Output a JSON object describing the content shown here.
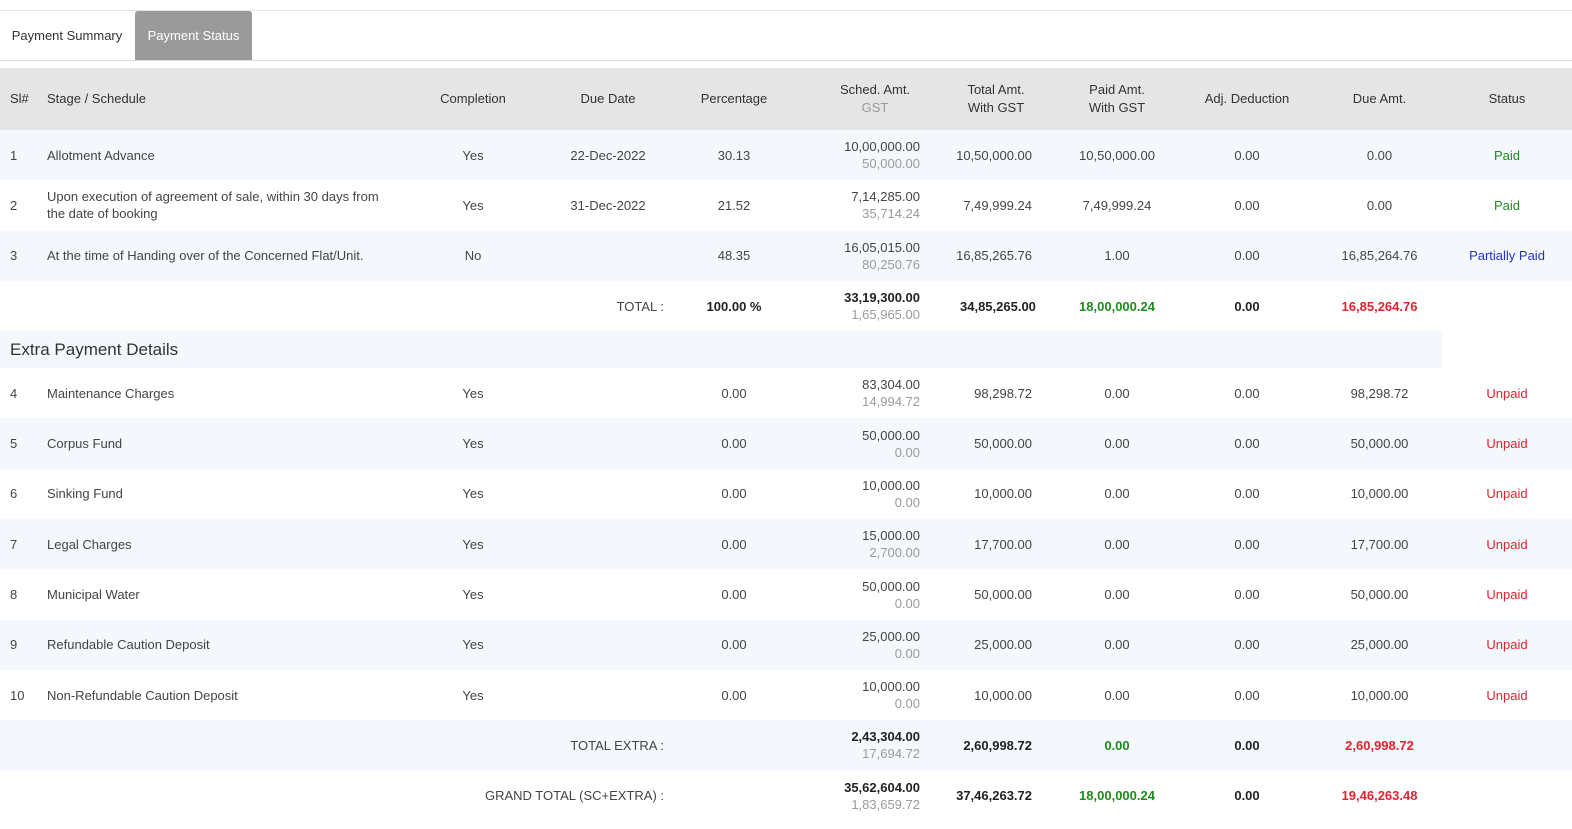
{
  "tabs": [
    {
      "label": "Payment Summary",
      "active": false
    },
    {
      "label": "Payment Status",
      "active": true
    }
  ],
  "columns": {
    "sl": "Sl#",
    "stage": "Stage / Schedule",
    "completion": "Completion",
    "due_date": "Due Date",
    "percentage": "Percentage",
    "sched_amt": "Sched. Amt.",
    "sched_gst": "GST",
    "total_amt_1": "Total Amt.",
    "total_amt_2": "With GST",
    "paid_amt_1": "Paid Amt.",
    "paid_amt_2": "With GST",
    "adj_deduction": "Adj. Deduction",
    "due_amt": "Due Amt.",
    "status": "Status"
  },
  "stages": [
    {
      "sl": "1",
      "stage": "Allotment Advance",
      "completion": "Yes",
      "due_date": "22-Dec-2022",
      "percentage": "30.13",
      "sched": "10,00,000.00",
      "gst": "50,000.00",
      "total": "10,50,000.00",
      "paid": "10,50,000.00",
      "adj": "0.00",
      "due": "0.00",
      "status": "Paid"
    },
    {
      "sl": "2",
      "stage": "Upon execution of agreement of sale, within 30 days from the date of booking",
      "completion": "Yes",
      "due_date": "31-Dec-2022",
      "percentage": "21.52",
      "sched": "7,14,285.00",
      "gst": "35,714.24",
      "total": "7,49,999.24",
      "paid": "7,49,999.24",
      "adj": "0.00",
      "due": "0.00",
      "status": "Paid"
    },
    {
      "sl": "3",
      "stage": "At the time of Handing over of the Concerned Flat/Unit.",
      "completion": "No",
      "due_date": "",
      "percentage": "48.35",
      "sched": "16,05,015.00",
      "gst": "80,250.76",
      "total": "16,85,265.76",
      "paid": "1.00",
      "adj": "0.00",
      "due": "16,85,264.76",
      "status": "Partially Paid"
    }
  ],
  "total": {
    "label": "TOTAL :",
    "percentage": "100.00 %",
    "sched": "33,19,300.00",
    "gst": "1,65,965.00",
    "total": "34,85,265.00",
    "paid": "18,00,000.24",
    "adj": "0.00",
    "due": "16,85,264.76"
  },
  "extra_title": "Extra Payment Details",
  "extras": [
    {
      "sl": "4",
      "stage": "Maintenance Charges",
      "completion": "Yes",
      "percentage": "0.00",
      "sched": "83,304.00",
      "gst": "14,994.72",
      "total": "98,298.72",
      "paid": "0.00",
      "adj": "0.00",
      "due": "98,298.72",
      "status": "Unpaid"
    },
    {
      "sl": "5",
      "stage": "Corpus Fund",
      "completion": "Yes",
      "percentage": "0.00",
      "sched": "50,000.00",
      "gst": "0.00",
      "total": "50,000.00",
      "paid": "0.00",
      "adj": "0.00",
      "due": "50,000.00",
      "status": "Unpaid"
    },
    {
      "sl": "6",
      "stage": "Sinking Fund",
      "completion": "Yes",
      "percentage": "0.00",
      "sched": "10,000.00",
      "gst": "0.00",
      "total": "10,000.00",
      "paid": "0.00",
      "adj": "0.00",
      "due": "10,000.00",
      "status": "Unpaid"
    },
    {
      "sl": "7",
      "stage": "Legal Charges",
      "completion": "Yes",
      "percentage": "0.00",
      "sched": "15,000.00",
      "gst": "2,700.00",
      "total": "17,700.00",
      "paid": "0.00",
      "adj": "0.00",
      "due": "17,700.00",
      "status": "Unpaid"
    },
    {
      "sl": "8",
      "stage": "Municipal Water",
      "completion": "Yes",
      "percentage": "0.00",
      "sched": "50,000.00",
      "gst": "0.00",
      "total": "50,000.00",
      "paid": "0.00",
      "adj": "0.00",
      "due": "50,000.00",
      "status": "Unpaid"
    },
    {
      "sl": "9",
      "stage": "Refundable Caution Deposit",
      "completion": "Yes",
      "percentage": "0.00",
      "sched": "25,000.00",
      "gst": "0.00",
      "total": "25,000.00",
      "paid": "0.00",
      "adj": "0.00",
      "due": "25,000.00",
      "status": "Unpaid"
    },
    {
      "sl": "10",
      "stage": "Non-Refundable Caution Deposit",
      "completion": "Yes",
      "percentage": "0.00",
      "sched": "10,000.00",
      "gst": "0.00",
      "total": "10,000.00",
      "paid": "0.00",
      "adj": "0.00",
      "due": "10,000.00",
      "status": "Unpaid"
    }
  ],
  "total_extra": {
    "label": "TOTAL EXTRA :",
    "sched": "2,43,304.00",
    "gst": "17,694.72",
    "total": "2,60,998.72",
    "paid": "0.00",
    "adj": "0.00",
    "due": "2,60,998.72"
  },
  "grand_total": {
    "label": "GRAND TOTAL (SC+EXTRA) :",
    "sched": "35,62,604.00",
    "gst": "1,83,659.72",
    "total": "37,46,263.72",
    "paid": "18,00,000.24",
    "adj": "0.00",
    "due": "19,46,263.48"
  },
  "colors": {
    "paid": "#1e8a1e",
    "partial": "#2233cc",
    "unpaid": "#e0242f",
    "header_bg": "#e5e5e5",
    "alt_row_bg": "#f4f7fc",
    "active_tab_bg": "#9a9a9a"
  }
}
